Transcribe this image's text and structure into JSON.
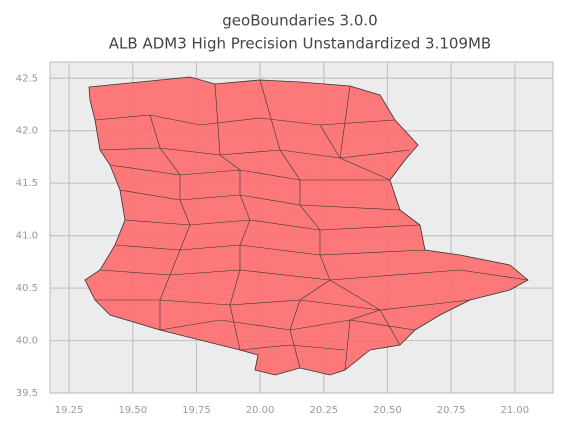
{
  "chart_data": {
    "type": "map",
    "title": "geoBoundaries 3.0.0",
    "subtitle": "ALB ADM3 High Precision Unstandardized 3.109MB",
    "xlim": [
      19.175,
      21.15
    ],
    "ylim": [
      39.5,
      42.655
    ],
    "xticks": [
      19.25,
      {
        "value": 19.5,
        "label": "19.50"
      },
      19.75,
      {
        "value": 20,
        "label": "20.00"
      },
      20.25,
      {
        "value": 20.5,
        "label": "20.50"
      },
      20.75,
      {
        "value": 21,
        "label": "21.00"
      }
    ],
    "yticks": [
      39.5,
      {
        "value": 40,
        "label": "40.0"
      },
      40.5,
      {
        "value": 41,
        "label": "41.0"
      },
      41.5,
      {
        "value": 42,
        "label": "42.0"
      },
      42.5
    ],
    "grid": true,
    "color": "#ff6b6b"
  }
}
